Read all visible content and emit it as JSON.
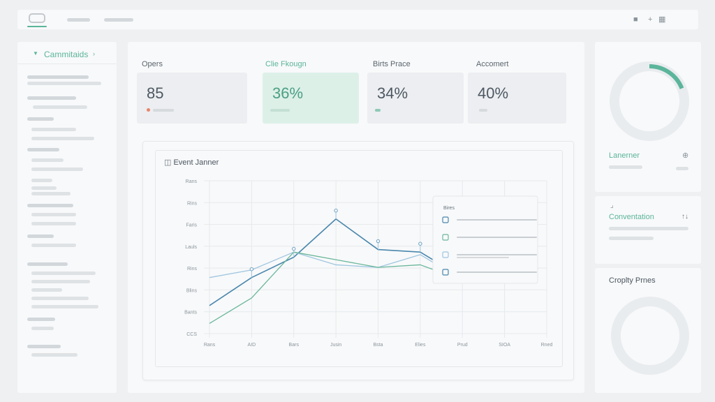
{
  "topbar": {
    "nav_items": [
      "",
      ""
    ],
    "icons": [
      "bookmark-icon",
      "plus-icon",
      "grid-icon"
    ],
    "icon_glyphs": [
      "■",
      "+",
      "▦"
    ]
  },
  "sidebar": {
    "title": "Cammitaids"
  },
  "stats": [
    {
      "label": "Opers",
      "value": "85"
    },
    {
      "label": "Clie Fkougn",
      "value": "36%"
    },
    {
      "label": "Birts Prace",
      "value": "34%"
    },
    {
      "label": "Accomert",
      "value": "40%"
    }
  ],
  "chart": {
    "title": "Event Janner",
    "icon": "calendar-icon",
    "y_ticks": [
      "Rans",
      "Rins",
      "Faris",
      "Lauls",
      "Rins",
      "Blins",
      "Bants",
      "CCS"
    ],
    "x_ticks": [
      "Rans",
      "AID",
      "Bars",
      "Jusin",
      "Bsta",
      "Elies",
      "Prud",
      "SIOA",
      "Rned"
    ],
    "popup": {
      "title": "Bires",
      "rows": [
        {
          "icon": "image-icon"
        },
        {
          "icon": "document-icon"
        },
        {
          "icon": "calendar-small-icon"
        },
        {
          "icon": "bar-icon"
        }
      ]
    }
  },
  "chart_data": {
    "type": "line",
    "categories": [
      "Rans",
      "AID",
      "Bars",
      "Jusin",
      "Bsta",
      "Elies",
      "Prud",
      "SIOA",
      "Rned"
    ],
    "series": [
      {
        "values": [
          1.1,
          2.2,
          3.0,
          4.5,
          3.3,
          3.2,
          2.2,
          null,
          null
        ],
        "color": "#4a87ad"
      },
      {
        "values": [
          2.2,
          2.5,
          3.2,
          2.7,
          2.6,
          3.1,
          2.1,
          null,
          null
        ],
        "color": "#9fc6e0"
      },
      {
        "values": [
          0.4,
          1.4,
          3.2,
          2.9,
          2.6,
          2.7,
          2.1,
          null,
          null
        ],
        "color": "#6ab79b"
      }
    ],
    "ylim": [
      0,
      6
    ],
    "grid": true
  },
  "panels": {
    "lanerner": {
      "title": "Lanerner",
      "progress": 0.19
    },
    "conventation": {
      "title": "Conventation"
    },
    "croplty": {
      "title": "Croplty Prnes"
    }
  },
  "colors": {
    "accent": "#5bb59a",
    "line_dark": "#4a87ad",
    "line_light": "#9fc6e0",
    "line_green": "#6ab79b"
  }
}
